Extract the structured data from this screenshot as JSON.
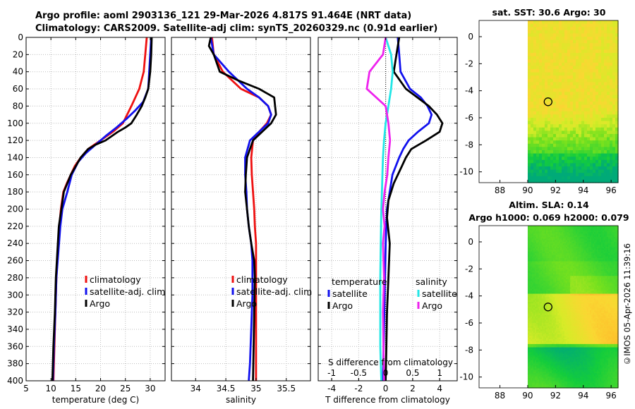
{
  "header": {
    "line1": "Argo profile: aoml 2903136_121 29-Mar-2026 4.817S 91.464E (NRT data)",
    "line2": "Climatology: CARS2009. Satellite-adj clim: synTS_20260329.nc (0.91d earlier)"
  },
  "colors": {
    "climatology": "#ee1111",
    "satellite": "#1111ee",
    "argo": "#000000",
    "sal_satellite": "#22e6e6",
    "sal_argo": "#ee22ee",
    "grid": "#bdbdbd",
    "map_blank": "#ffffff"
  },
  "chart_data": [
    {
      "id": "temperature",
      "type": "line",
      "xlabel": "temperature (deg C)",
      "ylabel": "",
      "xlim": [
        5,
        33
      ],
      "ylim": [
        400,
        0
      ],
      "xticks": [
        5,
        10,
        15,
        20,
        25,
        30
      ],
      "yticks": [
        0,
        20,
        40,
        60,
        80,
        100,
        120,
        140,
        160,
        180,
        200,
        220,
        240,
        260,
        280,
        300,
        320,
        340,
        360,
        380,
        400
      ],
      "legend": [
        "climatology",
        "satellite-adj. clim",
        "Argo"
      ],
      "series": [
        {
          "name": "climatology",
          "color": "#ee1111",
          "x": [
            29.3,
            29.0,
            28.7,
            27.8,
            26.2,
            24.5,
            22.5,
            20.0,
            17.5,
            16.0,
            14.8,
            14.0,
            13.2,
            12.5,
            12.0,
            11.7,
            11.4,
            11.1,
            10.9,
            10.7,
            10.5
          ],
          "y": [
            0,
            20,
            40,
            60,
            80,
            100,
            110,
            120,
            130,
            140,
            150,
            160,
            170,
            180,
            200,
            220,
            250,
            280,
            320,
            360,
            400
          ]
        },
        {
          "name": "satellite-adj. clim",
          "color": "#1111ee",
          "x": [
            30.2,
            30.0,
            29.8,
            29.6,
            28.6,
            27.0,
            25.2,
            23.2,
            21.0,
            19.0,
            17.0,
            15.5,
            14.2,
            13.3,
            12.3,
            11.9,
            11.5,
            11.1,
            10.9,
            10.6,
            10.4
          ],
          "y": [
            0,
            20,
            40,
            60,
            75,
            85,
            95,
            105,
            115,
            125,
            135,
            145,
            160,
            180,
            200,
            220,
            250,
            280,
            320,
            360,
            400
          ]
        },
        {
          "name": "Argo",
          "color": "#000000",
          "x": [
            30.3,
            30.2,
            30.0,
            29.6,
            29.0,
            28.3,
            27.3,
            26.2,
            25.0,
            23.5,
            21.0,
            19.0,
            17.5,
            16.0,
            15.0,
            14.0,
            13.3,
            12.6,
            12.1,
            11.6,
            11.3,
            11.0,
            10.8,
            10.5,
            10.3
          ],
          "y": [
            0,
            20,
            40,
            60,
            70,
            80,
            90,
            100,
            105,
            110,
            120,
            125,
            130,
            140,
            150,
            160,
            170,
            180,
            200,
            220,
            250,
            280,
            320,
            360,
            400
          ]
        }
      ]
    },
    {
      "id": "salinity",
      "type": "line",
      "xlabel": "salinity",
      "ylabel": "",
      "xlim": [
        33.6,
        35.9
      ],
      "ylim": [
        400,
        0
      ],
      "xticks": [
        34,
        34.5,
        35,
        35.5
      ],
      "xticklabels": [
        "34",
        "34.5",
        "35",
        "35.5"
      ],
      "yticks": [
        0,
        20,
        40,
        60,
        80,
        100,
        120,
        140,
        160,
        180,
        200,
        220,
        240,
        260,
        280,
        300,
        320,
        340,
        360,
        380,
        400
      ],
      "legend": [
        "climatology",
        "satellite-adj. clim",
        "Argo"
      ],
      "series": [
        {
          "name": "climatology",
          "color": "#ee1111",
          "x": [
            34.27,
            34.3,
            34.45,
            34.75,
            35.05,
            35.2,
            35.25,
            35.18,
            35.05,
            34.95,
            34.92,
            34.93,
            34.95,
            34.97,
            34.98,
            35.0,
            35.0,
            35.0,
            35.0,
            35.0,
            35.0
          ],
          "y": [
            0,
            20,
            40,
            60,
            70,
            80,
            90,
            100,
            110,
            120,
            140,
            160,
            180,
            200,
            220,
            240,
            260,
            300,
            340,
            380,
            400
          ]
        },
        {
          "name": "satellite-adj. clim",
          "color": "#1111ee",
          "x": [
            34.25,
            34.3,
            34.55,
            34.85,
            35.05,
            35.2,
            35.25,
            35.2,
            35.05,
            34.9,
            34.82,
            34.82,
            34.84,
            34.85,
            34.88,
            34.92,
            34.94,
            34.94,
            34.92,
            34.9,
            34.88
          ],
          "y": [
            0,
            20,
            40,
            60,
            70,
            80,
            90,
            100,
            110,
            120,
            140,
            160,
            180,
            200,
            220,
            240,
            260,
            300,
            340,
            380,
            400
          ]
        },
        {
          "name": "Argo",
          "color": "#000000",
          "x": [
            34.25,
            34.22,
            34.3,
            34.4,
            34.7,
            35.05,
            35.3,
            35.33,
            35.25,
            35.1,
            34.95,
            34.9,
            34.85,
            34.83,
            34.82,
            34.85,
            34.88,
            34.92,
            34.97,
            34.98,
            34.97,
            34.96,
            34.95
          ],
          "y": [
            0,
            10,
            20,
            40,
            50,
            60,
            70,
            90,
            100,
            110,
            120,
            130,
            140,
            160,
            180,
            200,
            220,
            240,
            260,
            280,
            320,
            360,
            400
          ]
        }
      ]
    },
    {
      "id": "differences",
      "type": "line",
      "xlabel": "T difference from climatology",
      "top_xlabel": "S difference from climatology",
      "xlim": [
        -5,
        5.3
      ],
      "ylim": [
        400,
        0
      ],
      "xticks": [
        -4,
        -2,
        0,
        2,
        4
      ],
      "top_xlim": [
        -1.25,
        1.325
      ],
      "top_xticks": [
        -1,
        -0.5,
        0,
        0.5,
        1
      ],
      "top_xticklabels": [
        "-1",
        "-0.5",
        "0",
        "0.5",
        "1"
      ],
      "yticks": [
        0,
        20,
        40,
        60,
        80,
        100,
        120,
        140,
        160,
        180,
        200,
        220,
        240,
        260,
        280,
        300,
        320,
        340,
        360,
        380,
        400
      ],
      "legend_titles": [
        "temperature",
        "salinity"
      ],
      "legend": [
        "satellite",
        "Argo",
        "satellite",
        "Argo"
      ],
      "series": [
        {
          "name": "T satellite",
          "color": "#1111ee",
          "x": [
            0.9,
            1.0,
            1.1,
            1.8,
            2.6,
            3.1,
            3.4,
            3.2,
            2.4,
            1.7,
            1.3,
            1.0,
            0.5,
            0.3,
            0.1,
            0.0,
            -0.05,
            -0.1,
            -0.15,
            -0.2
          ],
          "y": [
            0,
            20,
            40,
            60,
            70,
            80,
            90,
            100,
            110,
            120,
            130,
            140,
            160,
            180,
            200,
            240,
            280,
            320,
            360,
            400
          ]
        },
        {
          "name": "T Argo",
          "color": "#000000",
          "x": [
            1.0,
            0.8,
            0.6,
            1.5,
            3.2,
            3.8,
            4.2,
            4.0,
            3.0,
            1.9,
            1.5,
            1.2,
            0.6,
            0.2,
            0.1,
            0.3,
            0.2,
            0.1,
            0.05,
            0.0
          ],
          "y": [
            0,
            20,
            40,
            60,
            80,
            90,
            100,
            110,
            120,
            130,
            140,
            150,
            170,
            190,
            210,
            240,
            280,
            320,
            360,
            400
          ]
        },
        {
          "name": "S satellite",
          "color": "#22e6e6",
          "x": [
            0.0,
            0.1,
            0.13,
            0.1,
            0.05,
            0.0,
            -0.03,
            -0.05,
            -0.06,
            -0.07,
            -0.08,
            -0.09,
            -0.1,
            -0.1,
            -0.1,
            -0.09,
            -0.08
          ],
          "y": [
            0,
            20,
            40,
            60,
            80,
            100,
            120,
            140,
            160,
            180,
            200,
            240,
            280,
            320,
            360,
            380,
            400
          ]
        },
        {
          "name": "S Argo",
          "color": "#ee22ee",
          "x": [
            0.0,
            -0.05,
            -0.3,
            -0.35,
            0.0,
            0.05,
            0.08,
            0.05,
            0.03,
            -0.02,
            -0.05,
            -0.02,
            -0.05,
            -0.03,
            -0.05,
            -0.03
          ],
          "y": [
            0,
            20,
            40,
            60,
            80,
            100,
            120,
            140,
            160,
            180,
            200,
            220,
            240,
            280,
            320,
            400
          ]
        }
      ]
    },
    {
      "id": "sst_map",
      "type": "heatmap",
      "title": "sat. SST: 30.6  Argo: 30",
      "xlim": [
        86.5,
        96.5
      ],
      "ylim": [
        -10.8,
        1.2
      ],
      "xticks": [
        88,
        90,
        92,
        94,
        96
      ],
      "yticks": [
        0,
        -2,
        -4,
        -6,
        -8,
        -10
      ],
      "data_xmin": 90,
      "float_position": [
        91.464,
        -4.817
      ]
    },
    {
      "id": "sla_map",
      "type": "heatmap",
      "title_line1": "Altim. SLA: 0.14",
      "title_line2": "Argo h1000: 0.069 h2000: 0.079",
      "xlim": [
        86.5,
        96.5
      ],
      "ylim": [
        -10.8,
        1.2
      ],
      "xticks": [
        88,
        90,
        92,
        94,
        96
      ],
      "yticks": [
        0,
        -2,
        -4,
        -6,
        -8,
        -10
      ],
      "data_xmin": 90,
      "float_position": [
        91.464,
        -4.817
      ]
    }
  ],
  "credit": "©IMOS 05-Apr-2026 11:39:16"
}
